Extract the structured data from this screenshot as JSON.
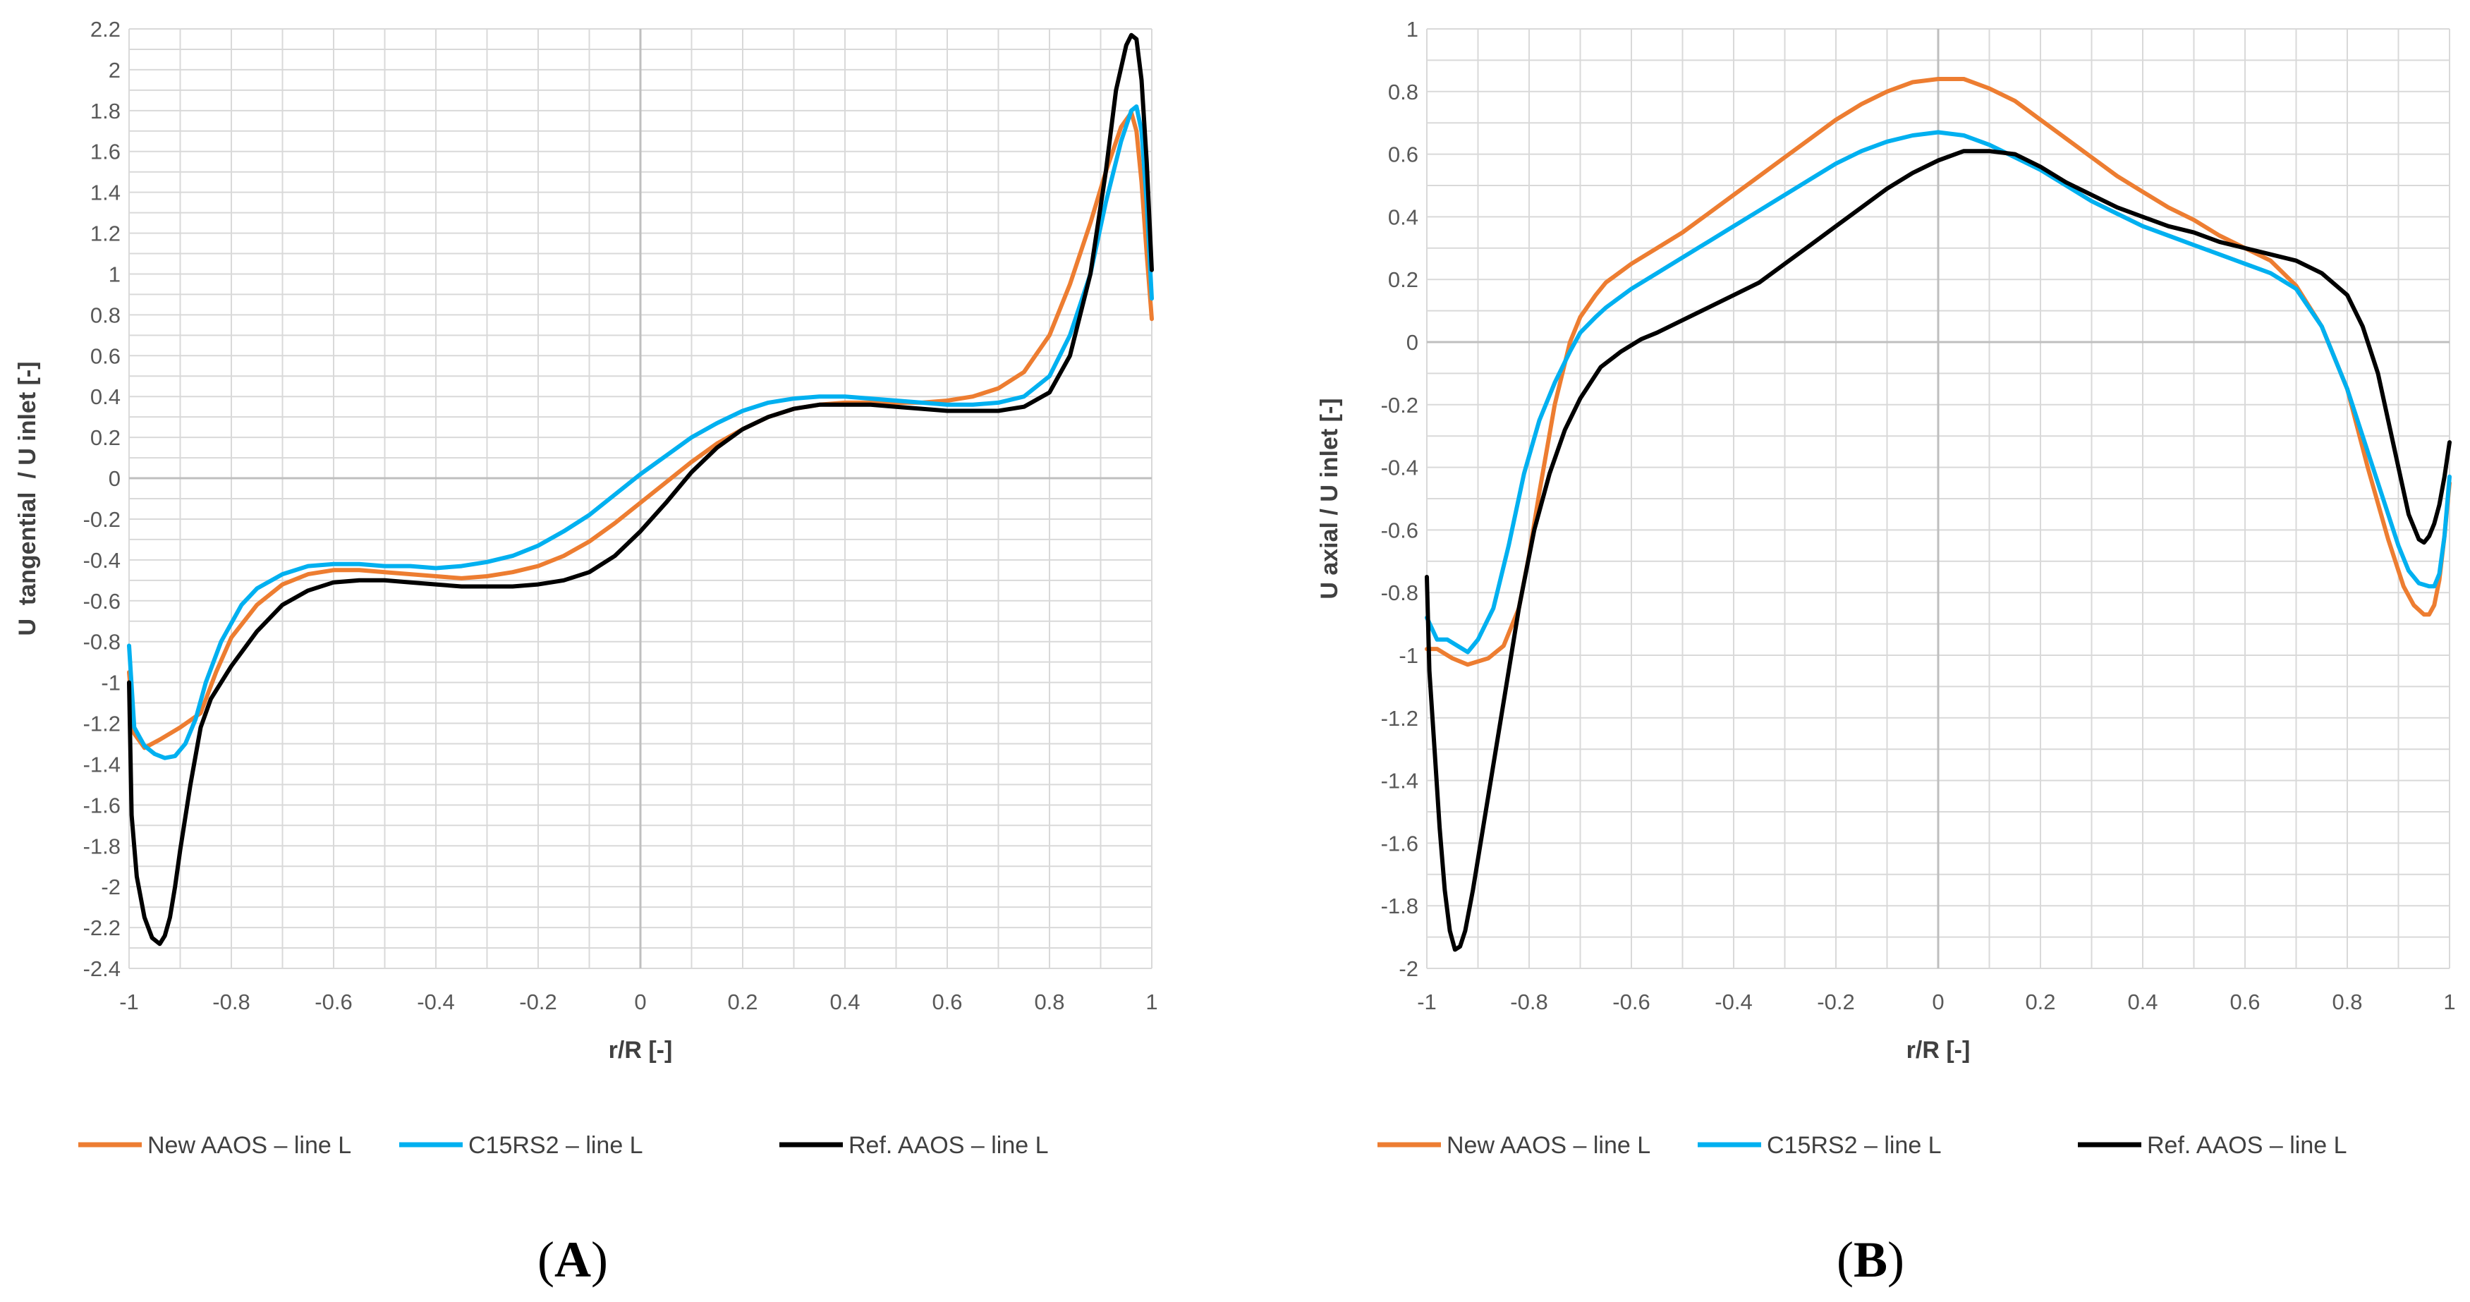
{
  "chart_data": [
    {
      "panel_label": "A",
      "type": "line",
      "xlabel": "r/R [-]",
      "ylabel": "U  tangential  / U inlet [-]",
      "xlim": [
        -1,
        1
      ],
      "ylim": [
        -2.4,
        2.2
      ],
      "x_ticks": [
        -1,
        -0.8,
        -0.6,
        -0.4,
        -0.2,
        0,
        0.2,
        0.4,
        0.6,
        0.8,
        1
      ],
      "y_ticks": [
        -2.4,
        -2.2,
        -2,
        -1.8,
        -1.6,
        -1.4,
        -1.2,
        -1,
        -0.8,
        -0.6,
        -0.4,
        -0.2,
        0,
        0.2,
        0.4,
        0.6,
        0.8,
        1,
        1.2,
        1.4,
        1.6,
        1.8,
        2,
        2.2
      ],
      "x_minor_step": 0.1,
      "y_minor_step": 0.1,
      "grid": true,
      "legend_position": "bottom",
      "series": [
        {
          "name": "New AAOS – line L",
          "color": "#ED7D31",
          "x": [
            -1.0,
            -0.99,
            -0.97,
            -0.94,
            -0.9,
            -0.86,
            -0.83,
            -0.8,
            -0.75,
            -0.7,
            -0.65,
            -0.6,
            -0.55,
            -0.5,
            -0.45,
            -0.4,
            -0.35,
            -0.3,
            -0.25,
            -0.2,
            -0.15,
            -0.1,
            -0.05,
            0.0,
            0.05,
            0.1,
            0.15,
            0.2,
            0.25,
            0.3,
            0.35,
            0.4,
            0.45,
            0.5,
            0.55,
            0.6,
            0.65,
            0.7,
            0.75,
            0.8,
            0.84,
            0.88,
            0.91,
            0.94,
            0.96,
            0.97,
            0.98,
            0.99,
            1.0
          ],
          "y": [
            -0.95,
            -1.25,
            -1.32,
            -1.28,
            -1.22,
            -1.15,
            -0.95,
            -0.78,
            -0.62,
            -0.52,
            -0.47,
            -0.45,
            -0.45,
            -0.46,
            -0.47,
            -0.48,
            -0.49,
            -0.48,
            -0.46,
            -0.43,
            -0.38,
            -0.31,
            -0.22,
            -0.12,
            -0.02,
            0.08,
            0.17,
            0.24,
            0.3,
            0.34,
            0.36,
            0.37,
            0.37,
            0.37,
            0.37,
            0.38,
            0.4,
            0.44,
            0.52,
            0.7,
            0.95,
            1.25,
            1.5,
            1.72,
            1.79,
            1.7,
            1.45,
            1.1,
            0.78
          ]
        },
        {
          "name": "C15RS2 – line L",
          "color": "#00B0F0",
          "x": [
            -1.0,
            -0.99,
            -0.97,
            -0.95,
            -0.93,
            -0.91,
            -0.89,
            -0.87,
            -0.85,
            -0.82,
            -0.78,
            -0.75,
            -0.7,
            -0.65,
            -0.6,
            -0.55,
            -0.5,
            -0.45,
            -0.4,
            -0.35,
            -0.3,
            -0.25,
            -0.2,
            -0.15,
            -0.1,
            -0.05,
            0.0,
            0.05,
            0.1,
            0.15,
            0.2,
            0.25,
            0.3,
            0.35,
            0.4,
            0.45,
            0.5,
            0.55,
            0.6,
            0.65,
            0.7,
            0.75,
            0.8,
            0.84,
            0.88,
            0.91,
            0.94,
            0.96,
            0.97,
            0.98,
            0.99,
            1.0
          ],
          "y": [
            -0.82,
            -1.22,
            -1.31,
            -1.35,
            -1.37,
            -1.36,
            -1.3,
            -1.18,
            -1.0,
            -0.8,
            -0.62,
            -0.54,
            -0.47,
            -0.43,
            -0.42,
            -0.42,
            -0.43,
            -0.43,
            -0.44,
            -0.43,
            -0.41,
            -0.38,
            -0.33,
            -0.26,
            -0.18,
            -0.08,
            0.02,
            0.11,
            0.2,
            0.27,
            0.33,
            0.37,
            0.39,
            0.4,
            0.4,
            0.39,
            0.38,
            0.37,
            0.36,
            0.36,
            0.37,
            0.4,
            0.5,
            0.7,
            1.0,
            1.35,
            1.65,
            1.8,
            1.82,
            1.7,
            1.35,
            0.88
          ]
        },
        {
          "name": "Ref. AAOS – line L",
          "color": "#000000",
          "x": [
            -1.0,
            -0.995,
            -0.985,
            -0.97,
            -0.955,
            -0.94,
            -0.93,
            -0.92,
            -0.91,
            -0.9,
            -0.88,
            -0.86,
            -0.84,
            -0.8,
            -0.75,
            -0.7,
            -0.65,
            -0.6,
            -0.55,
            -0.5,
            -0.45,
            -0.4,
            -0.35,
            -0.3,
            -0.25,
            -0.2,
            -0.15,
            -0.1,
            -0.05,
            0.0,
            0.05,
            0.1,
            0.15,
            0.2,
            0.25,
            0.3,
            0.35,
            0.4,
            0.45,
            0.5,
            0.55,
            0.6,
            0.65,
            0.7,
            0.75,
            0.8,
            0.84,
            0.88,
            0.91,
            0.93,
            0.95,
            0.96,
            0.97,
            0.98,
            0.99,
            1.0
          ],
          "y": [
            -1.0,
            -1.65,
            -1.95,
            -2.15,
            -2.25,
            -2.28,
            -2.24,
            -2.15,
            -2.0,
            -1.82,
            -1.5,
            -1.22,
            -1.08,
            -0.92,
            -0.75,
            -0.62,
            -0.55,
            -0.51,
            -0.5,
            -0.5,
            -0.51,
            -0.52,
            -0.53,
            -0.53,
            -0.53,
            -0.52,
            -0.5,
            -0.46,
            -0.38,
            -0.26,
            -0.12,
            0.03,
            0.15,
            0.24,
            0.3,
            0.34,
            0.36,
            0.36,
            0.36,
            0.35,
            0.34,
            0.33,
            0.33,
            0.33,
            0.35,
            0.42,
            0.6,
            1.0,
            1.5,
            1.9,
            2.12,
            2.17,
            2.15,
            1.95,
            1.55,
            1.02
          ]
        }
      ]
    },
    {
      "panel_label": "B",
      "type": "line",
      "xlabel": "r/R [-]",
      "ylabel": "U axial / U inlet [-]",
      "xlim": [
        -1,
        1
      ],
      "ylim": [
        -2,
        1
      ],
      "x_ticks": [
        -1,
        -0.8,
        -0.6,
        -0.4,
        -0.2,
        0,
        0.2,
        0.4,
        0.6,
        0.8,
        1
      ],
      "y_ticks": [
        -2,
        -1.8,
        -1.6,
        -1.4,
        -1.2,
        -1,
        -0.8,
        -0.6,
        -0.4,
        -0.2,
        0,
        0.2,
        0.4,
        0.6,
        0.8,
        1
      ],
      "x_minor_step": 0.1,
      "y_minor_step": 0.1,
      "grid": true,
      "legend_position": "bottom",
      "series": [
        {
          "name": "New AAOS – line L",
          "color": "#ED7D31",
          "x": [
            -1.0,
            -0.98,
            -0.95,
            -0.92,
            -0.88,
            -0.85,
            -0.82,
            -0.8,
            -0.78,
            -0.75,
            -0.72,
            -0.7,
            -0.67,
            -0.65,
            -0.6,
            -0.55,
            -0.5,
            -0.45,
            -0.4,
            -0.35,
            -0.3,
            -0.25,
            -0.2,
            -0.15,
            -0.1,
            -0.05,
            0.0,
            0.05,
            0.1,
            0.15,
            0.2,
            0.25,
            0.3,
            0.35,
            0.4,
            0.45,
            0.5,
            0.55,
            0.6,
            0.65,
            0.7,
            0.75,
            0.8,
            0.84,
            0.88,
            0.91,
            0.93,
            0.95,
            0.96,
            0.97,
            0.98,
            0.99,
            1.0
          ],
          "y": [
            -0.98,
            -0.98,
            -1.01,
            -1.03,
            -1.01,
            -0.97,
            -0.85,
            -0.68,
            -0.48,
            -0.2,
            0.0,
            0.08,
            0.15,
            0.19,
            0.25,
            0.3,
            0.35,
            0.41,
            0.47,
            0.53,
            0.59,
            0.65,
            0.71,
            0.76,
            0.8,
            0.83,
            0.84,
            0.84,
            0.81,
            0.77,
            0.71,
            0.65,
            0.59,
            0.53,
            0.48,
            0.43,
            0.39,
            0.34,
            0.3,
            0.26,
            0.18,
            0.05,
            -0.15,
            -0.4,
            -0.63,
            -0.78,
            -0.84,
            -0.87,
            -0.87,
            -0.84,
            -0.76,
            -0.62,
            -0.45
          ]
        },
        {
          "name": "C15RS2 – line L",
          "color": "#00B0F0",
          "x": [
            -1.0,
            -0.98,
            -0.96,
            -0.94,
            -0.92,
            -0.9,
            -0.87,
            -0.84,
            -0.81,
            -0.78,
            -0.75,
            -0.72,
            -0.7,
            -0.67,
            -0.65,
            -0.6,
            -0.55,
            -0.5,
            -0.45,
            -0.4,
            -0.35,
            -0.3,
            -0.25,
            -0.2,
            -0.15,
            -0.1,
            -0.05,
            0.0,
            0.05,
            0.1,
            0.15,
            0.2,
            0.25,
            0.3,
            0.35,
            0.4,
            0.45,
            0.5,
            0.55,
            0.6,
            0.65,
            0.7,
            0.75,
            0.8,
            0.84,
            0.88,
            0.9,
            0.92,
            0.94,
            0.96,
            0.97,
            0.98,
            0.99,
            1.0
          ],
          "y": [
            -0.88,
            -0.95,
            -0.95,
            -0.97,
            -0.99,
            -0.95,
            -0.85,
            -0.65,
            -0.42,
            -0.25,
            -0.13,
            -0.03,
            0.03,
            0.08,
            0.11,
            0.17,
            0.22,
            0.27,
            0.32,
            0.37,
            0.42,
            0.47,
            0.52,
            0.57,
            0.61,
            0.64,
            0.66,
            0.67,
            0.66,
            0.63,
            0.59,
            0.55,
            0.5,
            0.45,
            0.41,
            0.37,
            0.34,
            0.31,
            0.28,
            0.25,
            0.22,
            0.17,
            0.05,
            -0.15,
            -0.35,
            -0.55,
            -0.65,
            -0.73,
            -0.77,
            -0.78,
            -0.78,
            -0.74,
            -0.62,
            -0.43
          ]
        },
        {
          "name": "Ref. AAOS – line L",
          "color": "#000000",
          "x": [
            -1.0,
            -0.995,
            -0.985,
            -0.975,
            -0.965,
            -0.955,
            -0.945,
            -0.935,
            -0.925,
            -0.91,
            -0.89,
            -0.87,
            -0.85,
            -0.82,
            -0.79,
            -0.76,
            -0.73,
            -0.7,
            -0.66,
            -0.62,
            -0.58,
            -0.55,
            -0.5,
            -0.45,
            -0.4,
            -0.35,
            -0.3,
            -0.25,
            -0.2,
            -0.15,
            -0.1,
            -0.05,
            0.0,
            0.05,
            0.1,
            0.15,
            0.2,
            0.25,
            0.3,
            0.35,
            0.4,
            0.45,
            0.5,
            0.55,
            0.6,
            0.65,
            0.7,
            0.75,
            0.8,
            0.83,
            0.86,
            0.88,
            0.9,
            0.92,
            0.94,
            0.95,
            0.96,
            0.97,
            0.98,
            0.99,
            1.0
          ],
          "y": [
            -0.75,
            -1.05,
            -1.3,
            -1.55,
            -1.75,
            -1.88,
            -1.94,
            -1.93,
            -1.88,
            -1.75,
            -1.55,
            -1.35,
            -1.15,
            -0.85,
            -0.6,
            -0.42,
            -0.28,
            -0.18,
            -0.08,
            -0.03,
            0.01,
            0.03,
            0.07,
            0.11,
            0.15,
            0.19,
            0.25,
            0.31,
            0.37,
            0.43,
            0.49,
            0.54,
            0.58,
            0.61,
            0.61,
            0.6,
            0.56,
            0.51,
            0.47,
            0.43,
            0.4,
            0.37,
            0.35,
            0.32,
            0.3,
            0.28,
            0.26,
            0.22,
            0.15,
            0.05,
            -0.1,
            -0.25,
            -0.4,
            -0.55,
            -0.63,
            -0.64,
            -0.62,
            -0.58,
            -0.52,
            -0.43,
            -0.32
          ]
        }
      ]
    }
  ]
}
